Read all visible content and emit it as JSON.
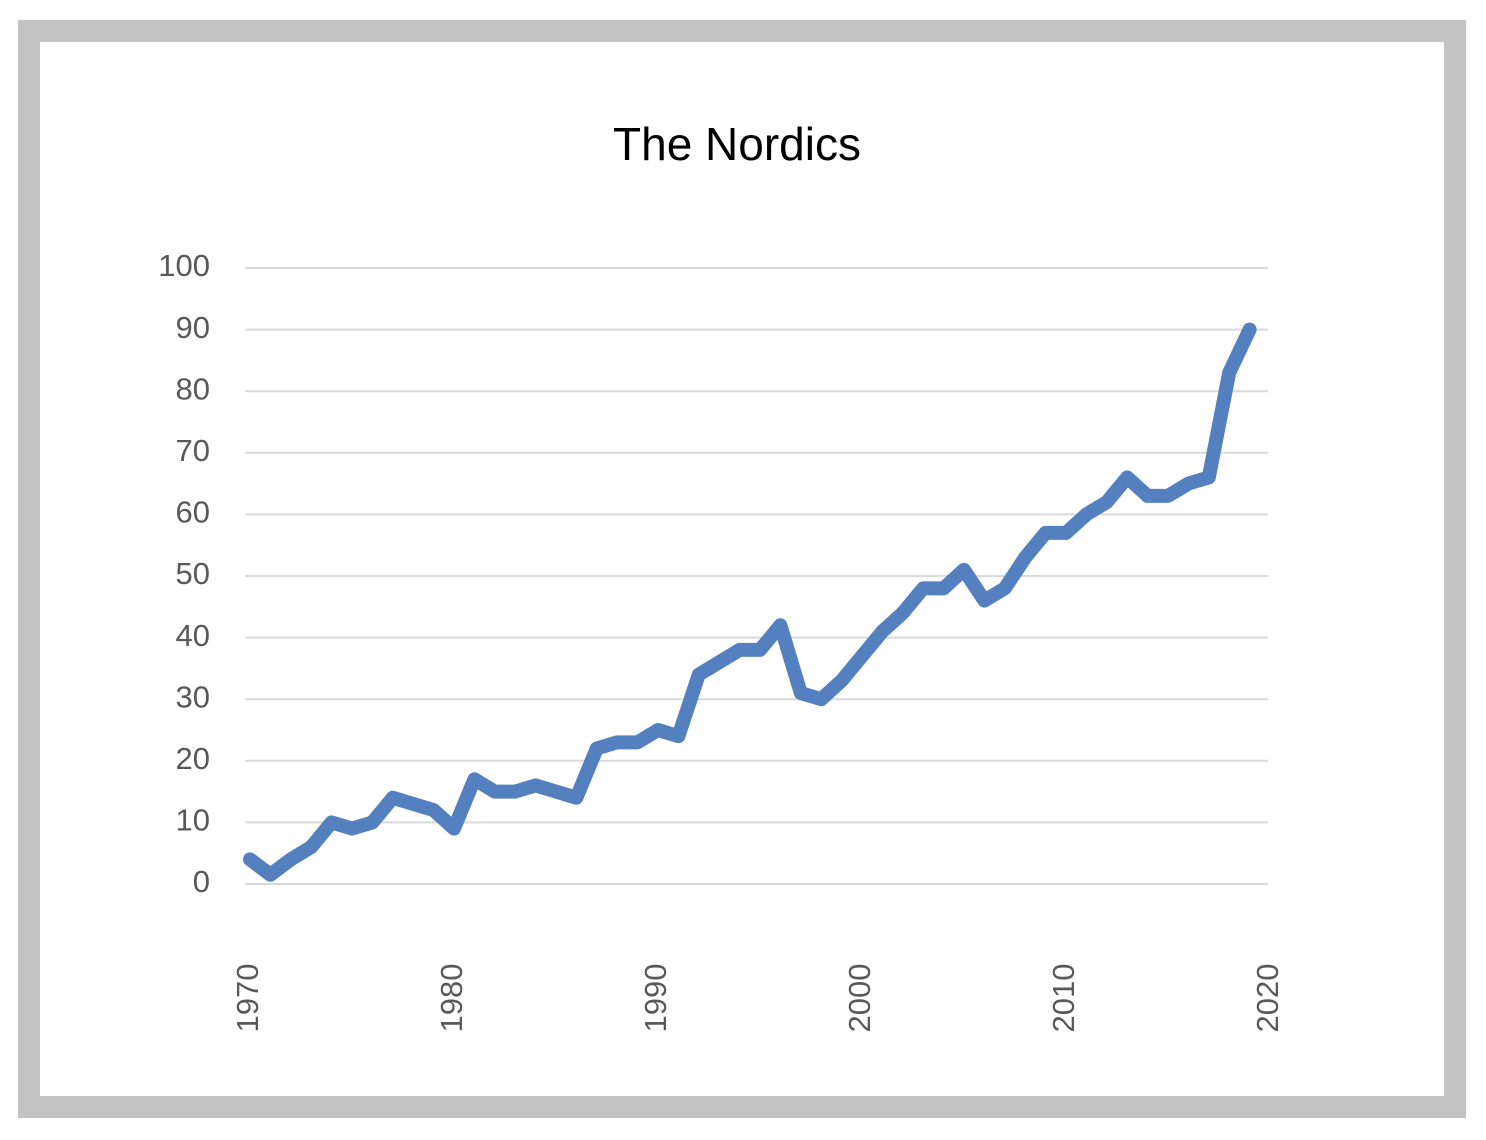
{
  "chart_data": {
    "type": "line",
    "title": "The Nordics",
    "x": [
      1970,
      1971,
      1972,
      1973,
      1974,
      1975,
      1976,
      1977,
      1978,
      1979,
      1980,
      1981,
      1982,
      1983,
      1984,
      1985,
      1986,
      1987,
      1988,
      1989,
      1990,
      1991,
      1992,
      1993,
      1994,
      1995,
      1996,
      1997,
      1998,
      1999,
      2000,
      2001,
      2002,
      2003,
      2004,
      2005,
      2006,
      2007,
      2008,
      2009,
      2010,
      2011,
      2012,
      2013,
      2014,
      2015,
      2016,
      2017,
      2018,
      2019
    ],
    "series": [
      {
        "color": "#5580bf",
        "values": [
          4,
          1.5,
          4,
          6,
          10,
          9,
          10,
          14,
          13,
          12,
          9,
          17,
          15,
          15,
          16,
          15,
          14,
          22,
          23,
          23,
          25,
          24,
          34,
          36,
          38,
          38,
          42,
          31,
          30,
          33,
          37,
          41,
          44,
          48,
          48,
          51,
          46,
          48,
          53,
          57,
          57,
          60,
          62,
          66,
          63,
          63,
          65,
          66,
          83,
          90
        ]
      }
    ],
    "xlim": [
      1970,
      2020
    ],
    "xticks": [
      1970,
      1980,
      1990,
      2000,
      2010,
      2020
    ],
    "ylim": [
      0,
      100
    ],
    "yticks": [
      0,
      10,
      20,
      30,
      40,
      50,
      60,
      70,
      80,
      90,
      100
    ],
    "grid": true
  }
}
